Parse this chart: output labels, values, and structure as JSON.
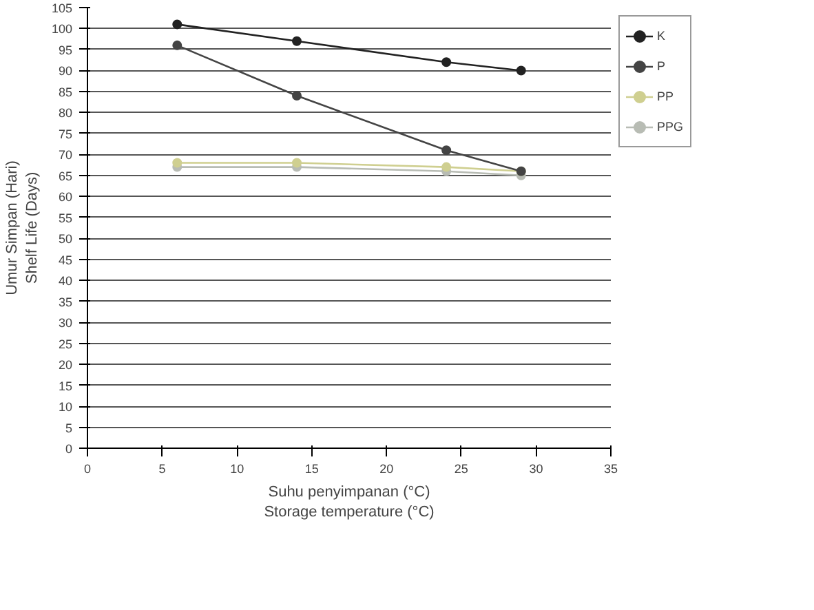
{
  "chart_data": {
    "type": "line",
    "xlabel": "Suhu penyimpanan (°C)\nStorage temperature (°C)",
    "ylabel": "Umur Simpan (Hari)\nShelf Life (Days)",
    "x": [
      6,
      14,
      24,
      29
    ],
    "series": [
      {
        "name": "K",
        "color": "#222222",
        "values": [
          101,
          97,
          92,
          90
        ]
      },
      {
        "name": "P",
        "color": "#444444",
        "values": [
          96,
          84,
          71,
          66
        ]
      },
      {
        "name": "PP",
        "color": "#cfcf90",
        "values": [
          68,
          68,
          67,
          66
        ]
      },
      {
        "name": "PPG",
        "color": "#b8bcb4",
        "values": [
          67,
          67,
          66,
          65
        ]
      }
    ],
    "xlim": [
      0,
      35
    ],
    "xticks": [
      0,
      5,
      10,
      15,
      20,
      25,
      30,
      35
    ],
    "ylim": [
      0,
      105
    ],
    "yticks": [
      0,
      5,
      10,
      15,
      20,
      25,
      30,
      35,
      40,
      45,
      50,
      55,
      60,
      65,
      70,
      75,
      80,
      85,
      90,
      95,
      100,
      105
    ],
    "grid": "y",
    "legend": "right",
    "marker": "circle",
    "line_style": "solid"
  }
}
